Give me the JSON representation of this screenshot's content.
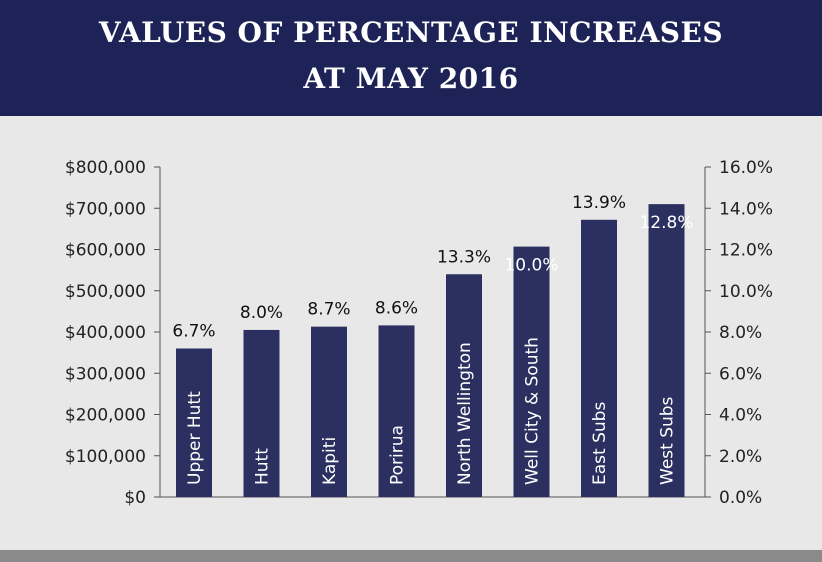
{
  "header": {
    "title_line1": "VALUES OF PERCENTAGE INCREASES",
    "title_line2": "AT MAY 2016"
  },
  "chart_data": {
    "type": "bar",
    "title": "VALUES OF PERCENTAGE INCREASES AT MAY 2016",
    "categories": [
      "Upper Hutt",
      "Hutt",
      "Kapiti",
      "Porirua",
      "North Wellington",
      "Well City & South",
      "East Subs",
      "West Subs"
    ],
    "values": [
      360000,
      405000,
      413000,
      416000,
      540000,
      607000,
      672000,
      710000
    ],
    "percent_labels": [
      "6.7%",
      "8.0%",
      "8.7%",
      "8.6%",
      "13.3%",
      "10.0%",
      "13.9%",
      "12.8%"
    ],
    "percent_label_inside": [
      false,
      false,
      false,
      false,
      false,
      true,
      false,
      true
    ],
    "ylim": [
      0,
      800000
    ],
    "y_ticks": [
      "$0",
      "$100,000",
      "$200,000",
      "$300,000",
      "$400,000",
      "$500,000",
      "$600,000",
      "$700,000",
      "$800,000"
    ],
    "y2lim": [
      0,
      16
    ],
    "y2_ticks": [
      "0.0%",
      "2.0%",
      "4.0%",
      "6.0%",
      "8.0%",
      "10.0%",
      "12.0%",
      "14.0%",
      "16.0%"
    ],
    "grid": false,
    "colors": {
      "bar": "#2b3060",
      "header": "#1d2356",
      "background": "#e8e8e8"
    }
  }
}
